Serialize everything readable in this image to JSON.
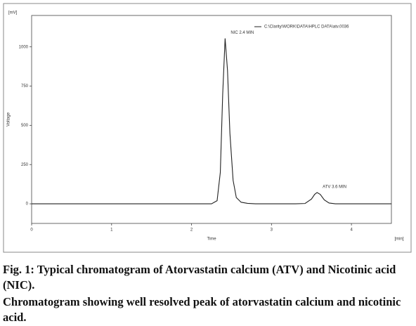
{
  "chart_data": {
    "type": "line",
    "y_unit": "[mV]",
    "x_unit": "[min]",
    "ylabel": "Voltage",
    "xlabel": "Time",
    "x": [
      0,
      0.5,
      1,
      1.5,
      2,
      2.25,
      2.32,
      2.36,
      2.39,
      2.42,
      2.45,
      2.48,
      2.52,
      2.56,
      2.62,
      2.7,
      2.8,
      3.0,
      3.3,
      3.42,
      3.5,
      3.54,
      3.57,
      3.61,
      3.66,
      3.72,
      3.8,
      4.0,
      4.5
    ],
    "series": [
      {
        "name": "C:\\Clarity\\WORK\\DATA\\HPLC DATA\\atv.0036",
        "color": "#222222",
        "values": [
          0,
          0,
          0,
          0,
          0,
          0,
          20,
          200,
          700,
          1054,
          850,
          450,
          150,
          40,
          10,
          3,
          0,
          0,
          0,
          2,
          30,
          60,
          72,
          60,
          25,
          5,
          0,
          0,
          0
        ]
      }
    ],
    "annotations": [
      {
        "text": "NIC 2.4 MIN",
        "x": 2.42,
        "y": 1054
      },
      {
        "text": "ATV 3.6 MIN",
        "x": 3.57,
        "y": 72
      }
    ],
    "xlim": [
      0,
      4.5
    ],
    "xticks": [
      0,
      1,
      2,
      3,
      4
    ],
    "ylim": [
      -125,
      1200
    ],
    "yticks": [
      0,
      250,
      500,
      750,
      1000
    ]
  },
  "caption": {
    "title": "Fig. 1: Typical chromatogram of Atorvastatin calcium (ATV) and Nicotinic acid  (NIC).",
    "text": "Chromatogram showing well resolved peak of atorvastatin calcium and nicotinic acid."
  }
}
